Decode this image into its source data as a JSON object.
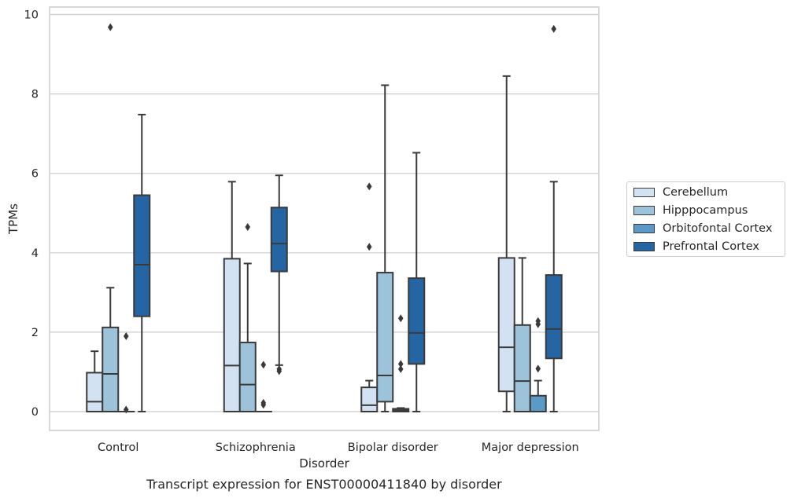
{
  "chart_data": {
    "type": "box",
    "caption": "Transcript expression for ENST00000411840 by disorder",
    "xlabel": "Disorder",
    "ylabel": "TPMs",
    "ylim": [
      -0.45,
      10.2
    ],
    "yticks": [
      0,
      2,
      4,
      6,
      8,
      10
    ],
    "grid": "horizontal",
    "legend_position": "right",
    "categories": [
      "Control",
      "Schizophrenia",
      "Bipolar disorder",
      "Major depression"
    ],
    "series": [
      {
        "name": "Cerebellum",
        "color": "#d3e2f2",
        "boxes": [
          {
            "whislo": 0,
            "q1": 0,
            "med": 0.25,
            "q3": 0.98,
            "whishi": 1.52,
            "fliers": []
          },
          {
            "whislo": 0,
            "q1": 0,
            "med": 1.16,
            "q3": 3.85,
            "whishi": 5.79,
            "fliers": []
          },
          {
            "whislo": 0,
            "q1": 0,
            "med": 0.16,
            "q3": 0.61,
            "whishi": 0.78,
            "fliers": [
              4.15,
              5.67
            ]
          },
          {
            "whislo": 0,
            "q1": 0.51,
            "med": 1.62,
            "q3": 3.87,
            "whishi": 8.45,
            "fliers": []
          }
        ]
      },
      {
        "name": "Hipppocampus",
        "color": "#9cc3da",
        "boxes": [
          {
            "whislo": 0,
            "q1": 0,
            "med": 0.95,
            "q3": 2.12,
            "whishi": 3.12,
            "fliers": [
              9.68
            ]
          },
          {
            "whislo": 0,
            "q1": 0,
            "med": 0.68,
            "q3": 1.74,
            "whishi": 3.73,
            "fliers": [
              4.65
            ]
          },
          {
            "whislo": 0,
            "q1": 0.25,
            "med": 0.91,
            "q3": 3.5,
            "whishi": 8.22,
            "fliers": []
          },
          {
            "whislo": 0,
            "q1": 0,
            "med": 0.77,
            "q3": 2.18,
            "whishi": 3.87,
            "fliers": []
          }
        ]
      },
      {
        "name": "Orbitofontal Cortex",
        "color": "#5b99c6",
        "boxes": [
          {
            "whislo": 0,
            "q1": 0,
            "med": 0,
            "q3": 0,
            "whishi": 0,
            "fliers": [
              0.05,
              1.9
            ]
          },
          {
            "whislo": 0,
            "q1": 0,
            "med": 0,
            "q3": 0,
            "whishi": 0,
            "fliers": [
              0.17,
              0.22,
              1.18
            ]
          },
          {
            "whislo": 0,
            "q1": 0,
            "med": 0.03,
            "q3": 0.07,
            "whishi": 0.09,
            "fliers": [
              1.07,
              1.2,
              2.35
            ]
          },
          {
            "whislo": 0,
            "q1": 0,
            "med": 0,
            "q3": 0.4,
            "whishi": 0.78,
            "fliers": [
              1.08,
              2.2,
              2.28
            ]
          }
        ]
      },
      {
        "name": "Prefrontal Cortex",
        "color": "#2565a4",
        "boxes": [
          {
            "whislo": 0,
            "q1": 2.4,
            "med": 3.7,
            "q3": 5.45,
            "whishi": 7.48,
            "fliers": []
          },
          {
            "whislo": 1.17,
            "q1": 3.53,
            "med": 4.23,
            "q3": 5.14,
            "whishi": 5.95,
            "fliers": [
              1.02,
              1.07
            ]
          },
          {
            "whislo": 0,
            "q1": 1.2,
            "med": 1.98,
            "q3": 3.36,
            "whishi": 6.52,
            "fliers": []
          },
          {
            "whislo": 0,
            "q1": 1.34,
            "med": 2.08,
            "q3": 3.44,
            "whishi": 5.79,
            "fliers": [
              9.64
            ]
          }
        ]
      }
    ]
  }
}
